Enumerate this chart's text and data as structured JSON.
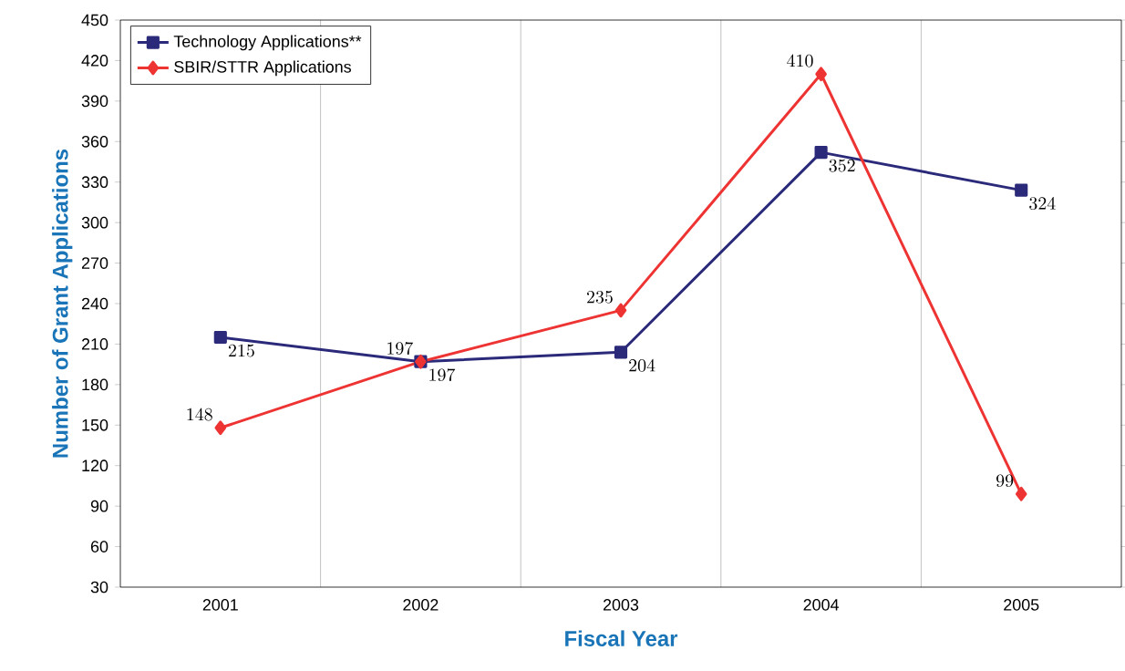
{
  "chart_data": {
    "type": "line",
    "xlabel": "Fiscal Year",
    "ylabel": "Number of Grant Applications",
    "categories": [
      "2001",
      "2002",
      "2003",
      "2004",
      "2005"
    ],
    "series": [
      {
        "name": "Technology Applications**",
        "color": "#2b2a7a",
        "marker": "square",
        "values": [
          215,
          197,
          204,
          352,
          324
        ]
      },
      {
        "name": "SBIR/STTR Applications",
        "color": "#ee3333",
        "marker": "diamond",
        "values": [
          148,
          197,
          235,
          410,
          99
        ]
      }
    ],
    "ylim": [
      30,
      450
    ],
    "yticks": [
      30,
      60,
      90,
      120,
      150,
      180,
      210,
      240,
      270,
      300,
      330,
      360,
      390,
      420,
      450
    ],
    "grid": "x",
    "legend": "top left",
    "data_labels": true,
    "line_style": "solid"
  }
}
